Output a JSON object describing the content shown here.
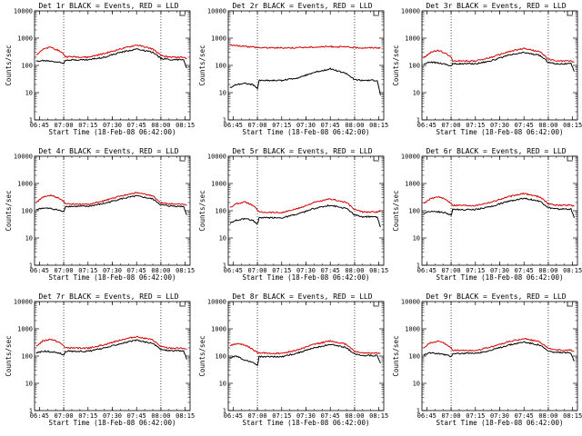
{
  "chart_data": [
    {
      "type": "line",
      "title": "Det 1r BLACK = Events, RED = LLD",
      "xlabel": "Start Time (18-Feb-08 06:42:00)",
      "ylabel": "Counts/sec",
      "x_ticks": [
        "06:45",
        "07:00",
        "07:15",
        "07:30",
        "07:45",
        "08:00",
        "08:15"
      ],
      "y_ticks": [
        "1",
        "10",
        "100",
        "1000",
        "10000"
      ],
      "yscale": "log",
      "ylim": [
        1,
        10000
      ],
      "marker_lines": [
        "07:00",
        "08:00"
      ],
      "series": [
        {
          "color": "#000000",
          "x": [
            "06:43",
            "06:47",
            "06:52",
            "06:57",
            "07:00",
            "07:01",
            "07:15",
            "07:25",
            "07:35",
            "07:45",
            "07:55",
            "08:00",
            "08:05",
            "08:14",
            "08:16"
          ],
          "values": [
            140,
            150,
            145,
            130,
            120,
            160,
            160,
            200,
            300,
            400,
            300,
            180,
            165,
            160,
            80
          ]
        },
        {
          "color": "#d40000",
          "x": [
            "06:43",
            "06:47",
            "06:52",
            "06:57",
            "07:00",
            "07:01",
            "07:15",
            "07:25",
            "07:35",
            "07:45",
            "07:55",
            "08:00",
            "08:05",
            "08:14",
            "08:16"
          ],
          "values": [
            250,
            380,
            470,
            350,
            260,
            210,
            200,
            270,
            400,
            560,
            400,
            230,
            200,
            200,
            180
          ]
        }
      ]
    },
    {
      "type": "line",
      "title": "Det 2r BLACK = Events, RED = LLD",
      "xlabel": "Start Time (18-Feb-08 06:42:00)",
      "ylabel": "Counts/sec",
      "x_ticks": [
        "06:45",
        "07:00",
        "07:15",
        "07:30",
        "07:45",
        "08:00",
        "08:15"
      ],
      "y_ticks": [
        "1",
        "10",
        "100",
        "1000",
        "10000"
      ],
      "yscale": "log",
      "ylim": [
        1,
        10000
      ],
      "marker_lines": [
        "07:00",
        "08:00"
      ],
      "series": [
        {
          "color": "#000000",
          "x": [
            "06:43",
            "06:47",
            "06:52",
            "06:57",
            "07:00",
            "07:01",
            "07:15",
            "07:25",
            "07:35",
            "07:45",
            "07:55",
            "08:00",
            "08:05",
            "08:14",
            "08:16"
          ],
          "values": [
            15,
            20,
            22,
            20,
            14,
            28,
            28,
            35,
            55,
            75,
            50,
            30,
            28,
            28,
            8
          ]
        },
        {
          "color": "#d40000",
          "x": [
            "06:43",
            "06:47",
            "06:52",
            "06:57",
            "07:00",
            "07:01",
            "07:15",
            "07:25",
            "07:35",
            "07:45",
            "07:55",
            "08:00",
            "08:05",
            "08:14",
            "08:16"
          ],
          "values": [
            560,
            530,
            500,
            480,
            460,
            450,
            440,
            450,
            470,
            490,
            470,
            450,
            440,
            450,
            430
          ]
        }
      ]
    },
    {
      "type": "line",
      "title": "Det 3r BLACK = Events, RED = LLD",
      "xlabel": "Start Time (18-Feb-08 06:42:00)",
      "ylabel": "Counts/sec",
      "x_ticks": [
        "06:45",
        "07:00",
        "07:15",
        "07:30",
        "07:45",
        "08:00",
        "08:15"
      ],
      "y_ticks": [
        "1",
        "10",
        "100",
        "1000",
        "10000"
      ],
      "yscale": "log",
      "ylim": [
        1,
        10000
      ],
      "marker_lines": [
        "07:00",
        "08:00"
      ],
      "series": [
        {
          "color": "#000000",
          "x": [
            "06:43",
            "06:47",
            "06:52",
            "06:57",
            "07:00",
            "07:01",
            "07:15",
            "07:25",
            "07:35",
            "07:45",
            "07:55",
            "08:00",
            "08:05",
            "08:14",
            "08:16"
          ],
          "values": [
            110,
            130,
            125,
            110,
            95,
            115,
            115,
            150,
            230,
            300,
            230,
            130,
            115,
            115,
            60
          ]
        },
        {
          "color": "#d40000",
          "x": [
            "06:43",
            "06:47",
            "06:52",
            "06:57",
            "07:00",
            "07:01",
            "07:15",
            "07:25",
            "07:35",
            "07:45",
            "07:55",
            "08:00",
            "08:05",
            "08:14",
            "08:16"
          ],
          "values": [
            190,
            290,
            360,
            270,
            200,
            150,
            145,
            200,
            310,
            420,
            310,
            170,
            145,
            145,
            130
          ]
        }
      ]
    },
    {
      "type": "line",
      "title": "Det 4r BLACK = Events, RED = LLD",
      "xlabel": "Start Time (18-Feb-08 06:42:00)",
      "ylabel": "Counts/sec",
      "x_ticks": [
        "06:45",
        "07:00",
        "07:15",
        "07:30",
        "07:45",
        "08:00",
        "08:15"
      ],
      "y_ticks": [
        "1",
        "10",
        "100",
        "1000",
        "10000"
      ],
      "yscale": "log",
      "ylim": [
        1,
        10000
      ],
      "marker_lines": [
        "07:00",
        "08:00"
      ],
      "series": [
        {
          "color": "#000000",
          "x": [
            "06:43",
            "06:47",
            "06:52",
            "06:57",
            "07:00",
            "07:01",
            "07:15",
            "07:25",
            "07:35",
            "07:45",
            "07:55",
            "08:00",
            "08:05",
            "08:14",
            "08:16"
          ],
          "values": [
            110,
            125,
            120,
            105,
            90,
            145,
            145,
            185,
            270,
            350,
            270,
            165,
            150,
            145,
            70
          ]
        },
        {
          "color": "#d40000",
          "x": [
            "06:43",
            "06:47",
            "06:52",
            "06:57",
            "07:00",
            "07:01",
            "07:15",
            "07:25",
            "07:35",
            "07:45",
            "07:55",
            "08:00",
            "08:05",
            "08:14",
            "08:16"
          ],
          "values": [
            200,
            310,
            370,
            290,
            220,
            180,
            170,
            230,
            350,
            460,
            350,
            200,
            175,
            175,
            160
          ]
        }
      ]
    },
    {
      "type": "line",
      "title": "Det 5r BLACK = Events, RED = LLD",
      "xlabel": "Start Time (18-Feb-08 06:42:00)",
      "ylabel": "Counts/sec",
      "x_ticks": [
        "06:45",
        "07:00",
        "07:15",
        "07:30",
        "07:45",
        "08:00",
        "08:15"
      ],
      "y_ticks": [
        "1",
        "10",
        "100",
        "1000",
        "10000"
      ],
      "yscale": "log",
      "ylim": [
        1,
        10000
      ],
      "marker_lines": [
        "07:00",
        "08:00"
      ],
      "series": [
        {
          "color": "#000000",
          "x": [
            "06:43",
            "06:47",
            "06:52",
            "06:57",
            "07:00",
            "07:01",
            "07:15",
            "07:25",
            "07:35",
            "07:45",
            "07:55",
            "08:00",
            "08:05",
            "08:14",
            "08:16"
          ],
          "values": [
            35,
            45,
            50,
            45,
            32,
            55,
            55,
            75,
            120,
            160,
            120,
            70,
            60,
            60,
            25
          ]
        },
        {
          "color": "#d40000",
          "x": [
            "06:43",
            "06:47",
            "06:52",
            "06:57",
            "07:00",
            "07:01",
            "07:15",
            "07:25",
            "07:35",
            "07:45",
            "07:55",
            "08:00",
            "08:05",
            "08:14",
            "08:16"
          ],
          "values": [
            130,
            180,
            210,
            160,
            110,
            90,
            85,
            120,
            200,
            270,
            200,
            110,
            90,
            90,
            100
          ]
        }
      ]
    },
    {
      "type": "line",
      "title": "Det 6r BLACK = Events, RED = LLD",
      "xlabel": "Start Time (18-Feb-08 06:42:00)",
      "ylabel": "Counts/sec",
      "x_ticks": [
        "06:45",
        "07:00",
        "07:15",
        "07:30",
        "07:45",
        "08:00",
        "08:15"
      ],
      "y_ticks": [
        "1",
        "10",
        "100",
        "1000",
        "10000"
      ],
      "yscale": "log",
      "ylim": [
        1,
        10000
      ],
      "marker_lines": [
        "07:00",
        "08:00"
      ],
      "series": [
        {
          "color": "#000000",
          "x": [
            "06:43",
            "06:47",
            "06:52",
            "06:57",
            "07:00",
            "07:01",
            "07:15",
            "07:25",
            "07:35",
            "07:45",
            "07:55",
            "08:00",
            "08:05",
            "08:14",
            "08:16"
          ],
          "values": [
            80,
            95,
            92,
            82,
            70,
            110,
            110,
            145,
            220,
            290,
            220,
            130,
            115,
            115,
            55
          ]
        },
        {
          "color": "#d40000",
          "x": [
            "06:43",
            "06:47",
            "06:52",
            "06:57",
            "07:00",
            "07:01",
            "07:15",
            "07:25",
            "07:35",
            "07:45",
            "07:55",
            "08:00",
            "08:05",
            "08:14",
            "08:16"
          ],
          "values": [
            180,
            270,
            330,
            250,
            190,
            160,
            155,
            210,
            320,
            430,
            320,
            180,
            160,
            160,
            145
          ]
        }
      ]
    },
    {
      "type": "line",
      "title": "Det 7r BLACK = Events, RED = LLD",
      "xlabel": "Start Time (18-Feb-08 06:42:00)",
      "ylabel": "Counts/sec",
      "x_ticks": [
        "06:45",
        "07:00",
        "07:15",
        "07:30",
        "07:45",
        "08:00",
        "08:15"
      ],
      "y_ticks": [
        "1",
        "10",
        "100",
        "1000",
        "10000"
      ],
      "yscale": "log",
      "ylim": [
        1,
        10000
      ],
      "marker_lines": [
        "07:00",
        "08:00"
      ],
      "series": [
        {
          "color": "#000000",
          "x": [
            "06:43",
            "06:47",
            "06:52",
            "06:57",
            "07:00",
            "07:01",
            "07:15",
            "07:25",
            "07:35",
            "07:45",
            "07:55",
            "08:00",
            "08:05",
            "08:14",
            "08:16"
          ],
          "values": [
            130,
            150,
            145,
            130,
            110,
            150,
            150,
            195,
            290,
            380,
            290,
            175,
            160,
            155,
            75
          ]
        },
        {
          "color": "#d40000",
          "x": [
            "06:43",
            "06:47",
            "06:52",
            "06:57",
            "07:00",
            "07:01",
            "07:15",
            "07:25",
            "07:35",
            "07:45",
            "07:55",
            "08:00",
            "08:05",
            "08:14",
            "08:16"
          ],
          "values": [
            230,
            350,
            420,
            320,
            240,
            200,
            195,
            260,
            390,
            520,
            390,
            220,
            195,
            195,
            175
          ]
        }
      ]
    },
    {
      "type": "line",
      "title": "Det 8r BLACK = Events, RED = LLD",
      "xlabel": "Start Time (18-Feb-08 06:42:00)",
      "ylabel": "Counts/sec",
      "x_ticks": [
        "06:45",
        "07:00",
        "07:15",
        "07:30",
        "07:45",
        "08:00",
        "08:15"
      ],
      "y_ticks": [
        "1",
        "10",
        "100",
        "1000",
        "10000"
      ],
      "yscale": "log",
      "ylim": [
        1,
        10000
      ],
      "marker_lines": [
        "07:00",
        "08:00"
      ],
      "series": [
        {
          "color": "#000000",
          "x": [
            "06:43",
            "06:47",
            "06:52",
            "06:57",
            "07:00",
            "07:01",
            "07:15",
            "07:25",
            "07:35",
            "07:45",
            "07:55",
            "08:00",
            "08:05",
            "08:14",
            "08:16"
          ],
          "values": [
            85,
            100,
            70,
            60,
            45,
            95,
            95,
            130,
            200,
            270,
            200,
            120,
            105,
            105,
            55
          ]
        },
        {
          "color": "#d40000",
          "x": [
            "06:43",
            "06:47",
            "06:52",
            "06:57",
            "07:00",
            "07:01",
            "07:15",
            "07:25",
            "07:35",
            "07:45",
            "07:55",
            "08:00",
            "08:05",
            "08:14",
            "08:16"
          ],
          "values": [
            240,
            280,
            260,
            180,
            130,
            130,
            125,
            170,
            270,
            360,
            270,
            150,
            130,
            130,
            125
          ]
        }
      ]
    },
    {
      "type": "line",
      "title": "Det 9r BLACK = Events, RED = LLD",
      "xlabel": "Start Time (18-Feb-08 06:42:00)",
      "ylabel": "Counts/sec",
      "x_ticks": [
        "06:45",
        "07:00",
        "07:15",
        "07:30",
        "07:45",
        "08:00",
        "08:15"
      ],
      "y_ticks": [
        "1",
        "10",
        "100",
        "1000",
        "10000"
      ],
      "yscale": "log",
      "ylim": [
        1,
        10000
      ],
      "marker_lines": [
        "07:00",
        "08:00"
      ],
      "series": [
        {
          "color": "#000000",
          "x": [
            "06:43",
            "06:47",
            "06:52",
            "06:57",
            "07:00",
            "07:01",
            "07:15",
            "07:25",
            "07:35",
            "07:45",
            "07:55",
            "08:00",
            "08:05",
            "08:14",
            "08:16"
          ],
          "values": [
            110,
            130,
            125,
            110,
            95,
            125,
            125,
            165,
            250,
            330,
            250,
            150,
            135,
            130,
            65
          ]
        },
        {
          "color": "#d40000",
          "x": [
            "06:43",
            "06:47",
            "06:52",
            "06:57",
            "07:00",
            "07:01",
            "07:15",
            "07:25",
            "07:35",
            "07:45",
            "07:55",
            "08:00",
            "08:05",
            "08:14",
            "08:16"
          ],
          "values": [
            200,
            300,
            360,
            270,
            200,
            165,
            160,
            220,
            330,
            440,
            330,
            190,
            165,
            165,
            150
          ]
        }
      ]
    }
  ]
}
